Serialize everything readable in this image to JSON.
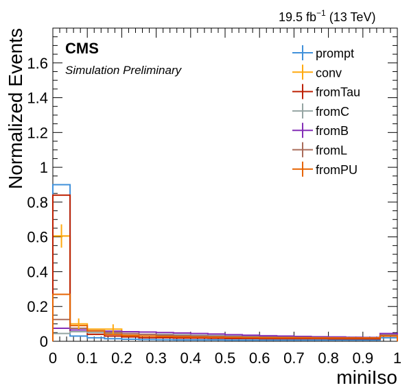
{
  "chart_data": {
    "type": "histogram",
    "lumi_label": "19.5 fb",
    "lumi_sup": "−1",
    "energy_label": " (13 TeV)",
    "experiment": "CMS",
    "subtitle": "Simulation Preliminary",
    "xlabel": "miniIso",
    "ylabel": "Normalized Events",
    "xlim": [
      0,
      1
    ],
    "ylim": [
      0,
      1.8
    ],
    "xticks": [
      "0",
      "0.1",
      "0.2",
      "0.3",
      "0.4",
      "0.5",
      "0.6",
      "0.7",
      "0.8",
      "0.9",
      "1"
    ],
    "yticks": [
      "0",
      "0.2",
      "0.4",
      "0.6",
      "0.8",
      "1",
      "1.2",
      "1.4",
      "1.6"
    ],
    "legend_position": "top-right",
    "bin_edges": [
      0,
      0.05,
      0.1,
      0.15,
      0.2,
      0.25,
      0.3,
      0.35,
      0.4,
      0.45,
      0.5,
      0.55,
      0.6,
      0.65,
      0.7,
      0.75,
      0.8,
      0.85,
      0.9,
      0.95,
      1.0
    ],
    "series": [
      {
        "name": "prompt",
        "color": "#3f90da",
        "values": [
          0.9,
          0.03,
          0.02,
          0.015,
          0.012,
          0.01,
          0.009,
          0.008,
          0.008,
          0.008,
          0.007,
          0.007,
          0.007,
          0.007,
          0.007,
          0.007,
          0.007,
          0.007,
          0.007,
          0.02
        ]
      },
      {
        "name": "conv",
        "color": "#ffa90e",
        "values": [
          0.605,
          0.1,
          0.07,
          0.07,
          0.03,
          0.03,
          0.025,
          0.02,
          0.02,
          0.02,
          0.018,
          0.018,
          0.018,
          0.018,
          0.018,
          0.018,
          0.018,
          0.018,
          0.018,
          0.03
        ]
      },
      {
        "name": "fromTau",
        "color": "#bd1f01",
        "values": [
          0.84,
          0.055,
          0.04,
          0.03,
          0.025,
          0.02,
          0.02,
          0.018,
          0.018,
          0.017,
          0.016,
          0.016,
          0.015,
          0.015,
          0.015,
          0.015,
          0.014,
          0.014,
          0.014,
          0.03
        ]
      },
      {
        "name": "fromC",
        "color": "#94a4a2",
        "values": [
          0.045,
          0.055,
          0.05,
          0.045,
          0.045,
          0.04,
          0.04,
          0.038,
          0.035,
          0.033,
          0.03,
          0.028,
          0.027,
          0.025,
          0.024,
          0.023,
          0.022,
          0.021,
          0.02,
          0.04
        ]
      },
      {
        "name": "fromB",
        "color": "#832db6",
        "values": [
          0.075,
          0.065,
          0.06,
          0.058,
          0.055,
          0.053,
          0.05,
          0.048,
          0.045,
          0.042,
          0.038,
          0.035,
          0.032,
          0.03,
          0.028,
          0.026,
          0.025,
          0.023,
          0.022,
          0.045
        ]
      },
      {
        "name": "fromL",
        "color": "#a96b59",
        "values": [
          0.125,
          0.075,
          0.06,
          0.05,
          0.045,
          0.04,
          0.035,
          0.032,
          0.03,
          0.028,
          0.026,
          0.025,
          0.024,
          0.023,
          0.022,
          0.021,
          0.02,
          0.02,
          0.02,
          0.035
        ]
      },
      {
        "name": "fromPU",
        "color": "#e76300",
        "values": [
          0.27,
          0.09,
          0.06,
          0.04,
          0.035,
          0.03,
          0.028,
          0.026,
          0.024,
          0.023,
          0.022,
          0.021,
          0.02,
          0.02,
          0.02,
          0.019,
          0.019,
          0.019,
          0.019,
          0.03
        ]
      }
    ]
  }
}
